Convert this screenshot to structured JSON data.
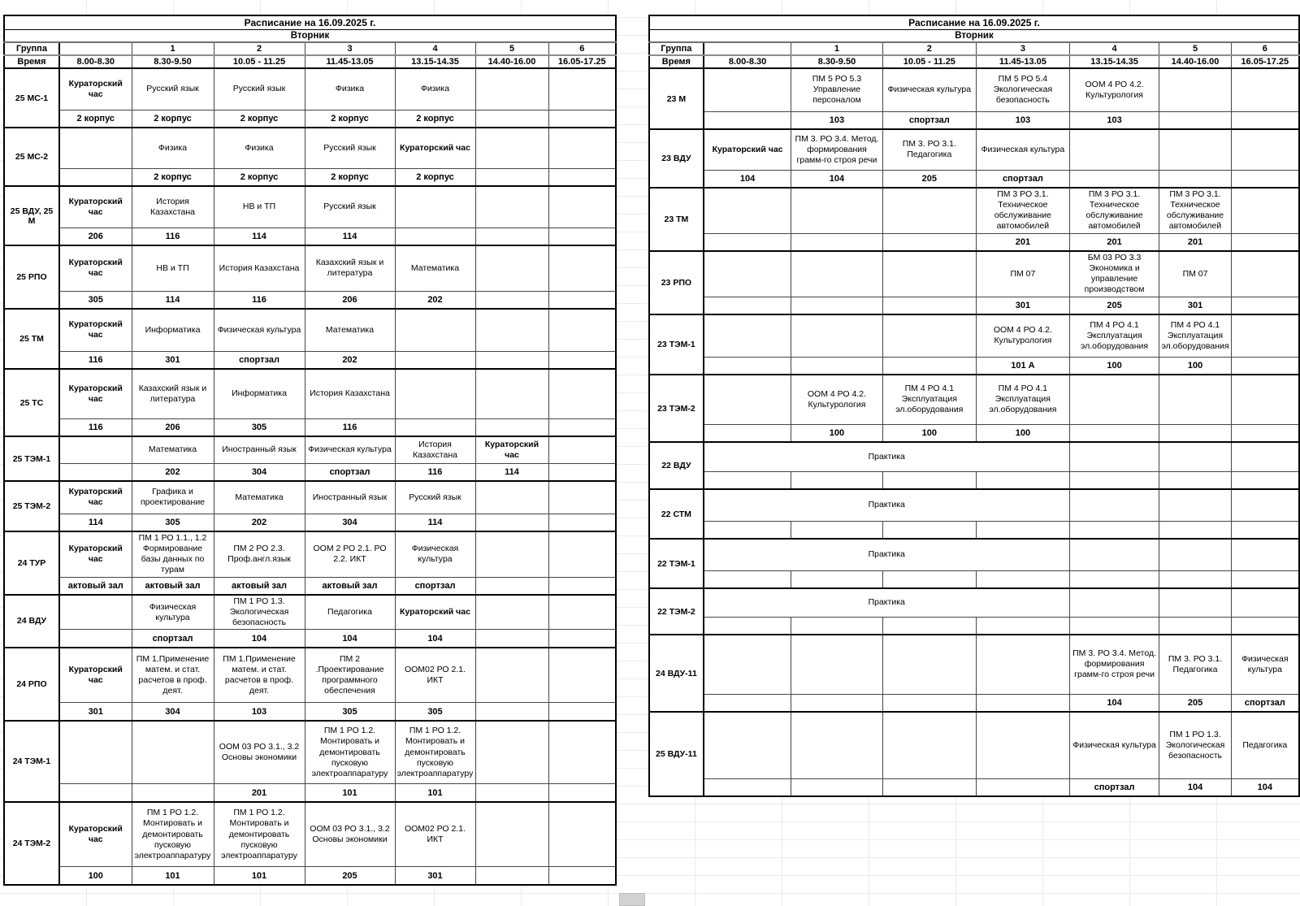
{
  "colors": {
    "border": "#000000",
    "text": "#000000",
    "faint_grid": "#ebebeb"
  },
  "tables": [
    {
      "id": "left",
      "title": "Расписание на 16.09.2025 г.",
      "day": "Вторник",
      "header": {
        "group_label": "Группа",
        "time_label": "Время",
        "period_numbers": [
          "1",
          "2",
          "3",
          "4",
          "5",
          "6"
        ],
        "times": [
          "8.00-8.30",
          "8.30-9.50",
          "10.05 - 11.25",
          "11.45-13.05",
          "13.15-14.35",
          "14.40-16.00",
          "16.05-17.25"
        ]
      },
      "groups": [
        {
          "name": "25 МС-1",
          "subjects": [
            "Кураторский час",
            "Русский язык",
            "Русский язык",
            "Физика",
            "Физика",
            "",
            ""
          ],
          "rooms": [
            "2 корпус",
            "2 корпус",
            "2 корпус",
            "2 корпус",
            "2 корпус",
            "",
            ""
          ]
        },
        {
          "name": "25 МС-2",
          "subjects": [
            "",
            "Физика",
            "Физика",
            "Русский язык",
            "Кураторский час",
            "",
            ""
          ],
          "rooms": [
            "",
            "2 корпус",
            "2 корпус",
            "2 корпус",
            "2 корпус",
            "",
            ""
          ]
        },
        {
          "name": "25 ВДУ, 25 М",
          "subjects": [
            "Кураторский час",
            "История Казахстана",
            "НВ и ТП",
            "Русский язык",
            "",
            "",
            ""
          ],
          "rooms": [
            "206",
            "116",
            "114",
            "114",
            "",
            "",
            ""
          ]
        },
        {
          "name": "25 РПО",
          "subjects": [
            "Кураторский час",
            "НВ и ТП",
            "История Казахстана",
            "Казахский язык и литература",
            "Математика",
            "",
            ""
          ],
          "rooms": [
            "305",
            "114",
            "116",
            "206",
            "202",
            "",
            ""
          ]
        },
        {
          "name": "25 ТМ",
          "subjects": [
            "Кураторский час",
            "Информатика",
            "Физическая культура",
            "Математика",
            "",
            "",
            ""
          ],
          "rooms": [
            "116",
            "301",
            "спортзал",
            "202",
            "",
            "",
            ""
          ]
        },
        {
          "name": "25 ТС",
          "subjects": [
            "Кураторский час",
            "Казахский язык и литература",
            "Информатика",
            "История Казахстана",
            "",
            "",
            ""
          ],
          "rooms": [
            "116",
            "206",
            "305",
            "116",
            "",
            "",
            ""
          ]
        },
        {
          "name": "25 ТЭМ-1",
          "subjects": [
            "",
            "Математика",
            "Иностранный язык",
            "Физическая культура",
            "История Казахстана",
            "Кураторский час",
            ""
          ],
          "rooms": [
            "",
            "202",
            "304",
            "спортзал",
            "116",
            "114",
            ""
          ]
        },
        {
          "name": "25 ТЭМ-2",
          "subjects": [
            "Кураторский час",
            "Графика и проектирование",
            "Математика",
            "Иностранный язык",
            "Русский язык",
            "",
            ""
          ],
          "rooms": [
            "114",
            "305",
            "202",
            "304",
            "114",
            "",
            ""
          ]
        },
        {
          "name": "24 ТУР",
          "subjects": [
            "Кураторский час",
            "ПМ 1 РО 1.1., 1.2 Формирование базы данных по турам",
            "ПМ 2 РО 2.3. Проф.англ.язык",
            "ООМ 2 РО 2.1. РО 2.2. ИКТ",
            "Физическая культура",
            "",
            ""
          ],
          "rooms": [
            "актовый зал",
            "актовый зал",
            "актовый зал",
            "актовый зал",
            "спортзал",
            "",
            ""
          ]
        },
        {
          "name": "24 ВДУ",
          "subjects": [
            "",
            "Физическая культура",
            "ПМ 1 РО 1.3. Экологическая безопасность",
            "Педагогика",
            "Кураторский час",
            "",
            ""
          ],
          "rooms": [
            "",
            "спортзал",
            "104",
            "104",
            "104",
            "",
            ""
          ]
        },
        {
          "name": "24 РПО",
          "subjects": [
            "Кураторский час",
            "ПМ 1.Применение матем. и стат. расчетов в проф. деят.",
            "ПМ 1.Применение матем. и стат. расчетов в проф. деят.",
            "ПМ 2 .Проектирование программного обеспечения",
            "ООМ02 РО 2.1. ИКТ",
            "",
            ""
          ],
          "rooms": [
            "301",
            "304",
            "103",
            "305",
            "305",
            "",
            ""
          ]
        },
        {
          "name": "24 ТЭМ-1",
          "subjects": [
            "",
            "",
            "ООМ 03 РО 3.1., 3.2 Основы экономики",
            "ПМ 1 РО 1.2. Монтировать и демонтировать пусковую электроаппаратуру",
            "ПМ 1 РО 1.2. Монтировать и демонтировать пусковую электроаппаратуру",
            "",
            ""
          ],
          "rooms": [
            "",
            "",
            "201",
            "101",
            "101",
            "",
            ""
          ]
        },
        {
          "name": "24 ТЭМ-2",
          "subjects": [
            "Кураторский час",
            "ПМ 1 РО 1.2. Монтировать и демонтировать пусковую электроаппаратуру",
            "ПМ 1 РО 1.2. Монтировать и демонтировать пусковую электроаппаратуру",
            "ООМ 03 РО 3.1., 3.2 Основы экономики",
            "ООМ02 РО 2.1. ИКТ",
            "",
            ""
          ],
          "rooms": [
            "100",
            "101",
            "101",
            "205",
            "301",
            "",
            ""
          ]
        }
      ]
    },
    {
      "id": "right",
      "title": "Расписание на 16.09.2025 г.",
      "day": "Вторник",
      "header": {
        "group_label": "Группа",
        "time_label": "Время",
        "period_numbers": [
          "1",
          "2",
          "3",
          "4",
          "5",
          "6"
        ],
        "times": [
          "8.00-8.30",
          "8.30-9.50",
          "10.05 - 11.25",
          "11.45-13.05",
          "13.15-14.35",
          "14.40-16.00",
          "16.05-17.25"
        ]
      },
      "groups": [
        {
          "name": "23 М",
          "subjects": [
            "",
            "ПМ 5 РО 5.3 Управление персоналом",
            "Физическая культура",
            "ПМ 5 РО 5.4 Экологическая безопасность",
            "ООМ 4 РО 4.2. Культурология",
            "",
            ""
          ],
          "rooms": [
            "",
            "103",
            "спортзал",
            "103",
            "103",
            "",
            ""
          ]
        },
        {
          "name": "23 ВДУ",
          "subjects": [
            "Кураторский час",
            "ПМ 3. РО 3.4. Метод. формирования грамм-го строя речи",
            "ПМ 3. РО 3.1. Педагогика",
            "Физическая культура",
            "",
            "",
            ""
          ],
          "rooms": [
            "104",
            "104",
            "205",
            "спортзал",
            "",
            "",
            ""
          ]
        },
        {
          "name": "23 ТМ",
          "subjects": [
            "",
            "",
            "",
            "ПМ 3 РО 3.1. Техническое обслуживание автомобилей",
            "ПМ 3 РО 3.1. Техническое обслуживание автомобилей",
            "ПМ 3 РО 3.1. Техническое обслуживание автомобилей",
            ""
          ],
          "rooms": [
            "",
            "",
            "",
            "201",
            "201",
            "201",
            ""
          ]
        },
        {
          "name": "23 РПО",
          "subjects": [
            "",
            "",
            "",
            "ПМ 07",
            "БМ 03 РО 3.3 Экономика и управление производством",
            "ПМ 07",
            ""
          ],
          "rooms": [
            "",
            "",
            "",
            "301",
            "205",
            "301",
            ""
          ]
        },
        {
          "name": "23 ТЭМ-1",
          "subjects": [
            "",
            "",
            "",
            "ООМ 4 РО 4.2. Культурология",
            "ПМ 4 РО 4.1 Эксплуатация эл.оборудования",
            "ПМ 4 РО 4.1 Эксплуатация эл.оборудования",
            ""
          ],
          "rooms": [
            "",
            "",
            "",
            "101 А",
            "100",
            "100",
            ""
          ]
        },
        {
          "name": "23 ТЭМ-2",
          "subjects": [
            "",
            "ООМ 4 РО 4.2. Культурология",
            "ПМ 4 РО 4.1 Эксплуатация эл.оборудования",
            "ПМ 4 РО 4.1 Эксплуатация эл.оборудования",
            "",
            "",
            ""
          ],
          "rooms": [
            "",
            "100",
            "100",
            "100",
            "",
            "",
            ""
          ]
        },
        {
          "name": "22 ВДУ",
          "merged_subject": {
            "text": "Практика",
            "span": 4
          },
          "subjects": [
            "",
            "",
            ""
          ],
          "rooms": [
            "",
            "",
            "",
            "",
            "",
            "",
            ""
          ]
        },
        {
          "name": "22 СТМ",
          "merged_subject": {
            "text": "Практика",
            "span": 4
          },
          "subjects": [
            "",
            "",
            ""
          ],
          "rooms": [
            "",
            "",
            "",
            "",
            "",
            "",
            ""
          ]
        },
        {
          "name": "22 ТЭМ-1",
          "merged_subject": {
            "text": "Практика",
            "span": 4
          },
          "subjects": [
            "",
            "",
            ""
          ],
          "rooms": [
            "",
            "",
            "",
            "",
            "",
            "",
            ""
          ]
        },
        {
          "name": "22 ТЭМ-2",
          "merged_subject": {
            "text": "Практика",
            "span": 4
          },
          "subjects": [
            "",
            "",
            ""
          ],
          "rooms": [
            "",
            "",
            "",
            "",
            "",
            "",
            ""
          ]
        },
        {
          "name": "24 ВДУ-11",
          "subjects": [
            "",
            "",
            "",
            "",
            "ПМ 3. РО 3.4. Метод. формирования грамм-го строя речи",
            "ПМ 3. РО 3.1. Педагогика",
            "Физическая культура"
          ],
          "rooms": [
            "",
            "",
            "",
            "",
            "104",
            "205",
            "спортзал"
          ]
        },
        {
          "name": "25 ВДУ-11",
          "subjects": [
            "",
            "",
            "",
            "",
            "Физическая культура",
            "ПМ 1 РО 1.3. Экологическая безопасность",
            "Педагогика"
          ],
          "rooms": [
            "",
            "",
            "",
            "",
            "спортзал",
            "104",
            "104"
          ]
        }
      ]
    }
  ]
}
